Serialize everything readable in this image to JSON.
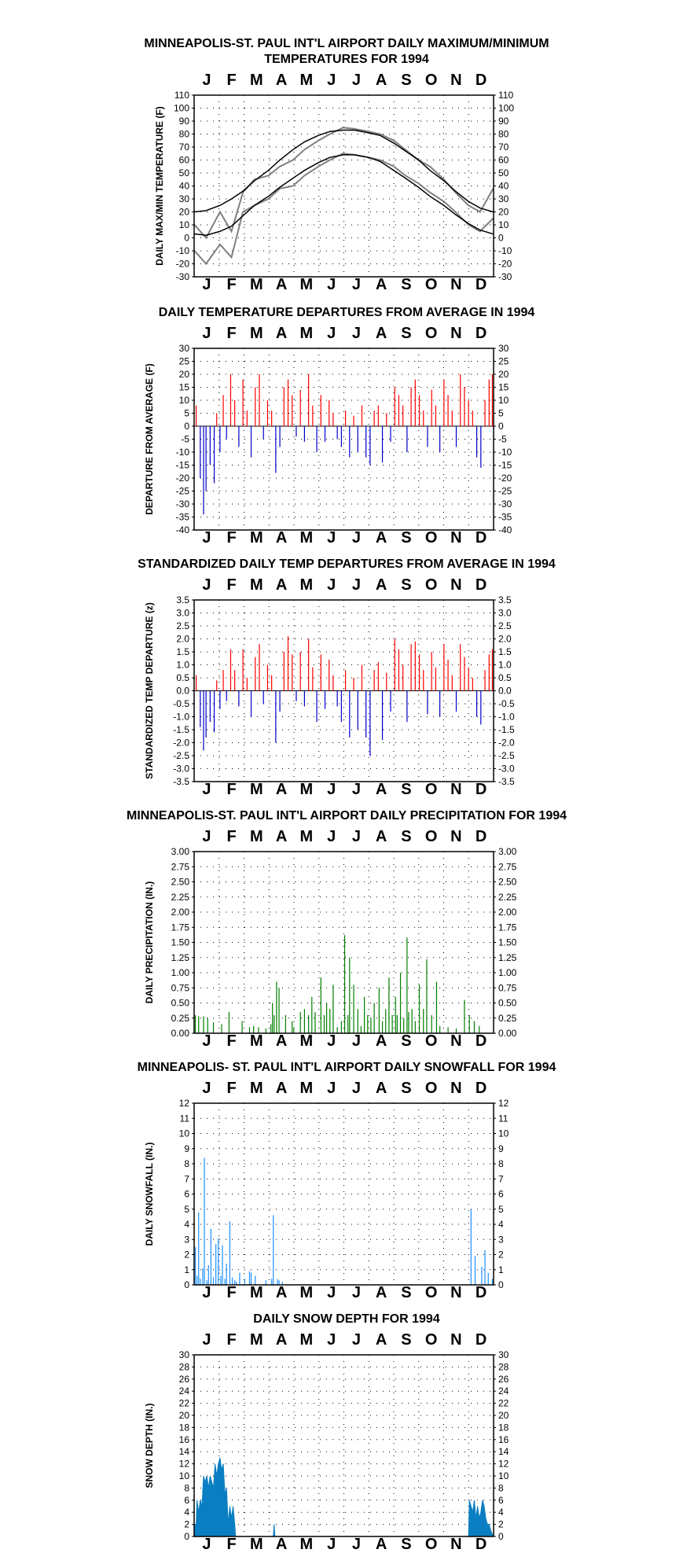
{
  "year": 1994,
  "months": [
    "J",
    "F",
    "M",
    "A",
    "M",
    "J",
    "J",
    "A",
    "S",
    "O",
    "N",
    "D"
  ],
  "colors": {
    "max": "#808080",
    "min": "#808080",
    "normal": "#000000",
    "above": "#ff0000",
    "below": "#0000cc",
    "precip": "#008000",
    "snow": "#1e90ff",
    "depth": "#0a7ec2"
  },
  "chart_data": [
    {
      "id": "temperature",
      "type": "line",
      "title": [
        "MINNEAPOLIS-ST. PAUL INT'L AIRPORT DAILY MAXIMUM/MINIMUM",
        "TEMPERATURES FOR 1994"
      ],
      "ylabel": "DAILY MAX/MIN TEMPERATURE (F)",
      "ylim": [
        -30,
        110
      ],
      "yticks": [
        -30,
        -20,
        -10,
        0,
        10,
        20,
        30,
        40,
        50,
        60,
        70,
        80,
        90,
        100,
        110
      ],
      "grid": true,
      "description_series": [
        "daily max",
        "daily min",
        "normal max",
        "normal min"
      ],
      "x": [
        1,
        15,
        32,
        46,
        60,
        74,
        91,
        105,
        121,
        135,
        152,
        166,
        182,
        196,
        213,
        227,
        244,
        258,
        274,
        288,
        305,
        319,
        335,
        349,
        365
      ],
      "series": [
        {
          "key": "max",
          "values": [
            10,
            0,
            20,
            5,
            35,
            45,
            48,
            55,
            60,
            68,
            75,
            80,
            85,
            84,
            82,
            80,
            75,
            68,
            60,
            55,
            45,
            35,
            25,
            20,
            38
          ]
        },
        {
          "key": "min",
          "values": [
            -10,
            -20,
            -5,
            -15,
            20,
            25,
            30,
            38,
            40,
            48,
            55,
            60,
            65,
            64,
            62,
            60,
            55,
            48,
            42,
            35,
            28,
            20,
            10,
            5,
            15
          ]
        },
        {
          "key": "normal_max",
          "values": [
            20,
            21,
            25,
            30,
            36,
            44,
            52,
            60,
            68,
            74,
            79,
            82,
            83,
            83,
            81,
            79,
            73,
            67,
            60,
            52,
            44,
            36,
            28,
            23,
            20
          ]
        },
        {
          "key": "normal_min",
          "values": [
            3,
            2,
            5,
            9,
            17,
            25,
            32,
            39,
            46,
            52,
            58,
            62,
            64,
            64,
            62,
            59,
            52,
            46,
            39,
            32,
            25,
            18,
            11,
            6,
            3
          ]
        }
      ]
    },
    {
      "id": "departure",
      "type": "bar",
      "title": [
        "DAILY TEMPERATURE DEPARTURES FROM AVERAGE IN 1994"
      ],
      "ylabel": "DEPARTURE FROM AVERAGE (F)",
      "ylim": [
        -40,
        30
      ],
      "yticks": [
        -40,
        -35,
        -30,
        -25,
        -20,
        -15,
        -10,
        -5,
        0,
        5,
        10,
        15,
        20,
        25,
        30
      ],
      "grid": true,
      "x": [
        3,
        8,
        12,
        15,
        20,
        25,
        28,
        32,
        36,
        40,
        45,
        50,
        55,
        60,
        65,
        70,
        75,
        80,
        85,
        90,
        95,
        100,
        105,
        110,
        115,
        120,
        125,
        130,
        135,
        140,
        145,
        150,
        155,
        160,
        165,
        170,
        175,
        180,
        185,
        190,
        195,
        200,
        205,
        210,
        215,
        220,
        225,
        230,
        235,
        240,
        245,
        250,
        255,
        260,
        265,
        270,
        275,
        280,
        285,
        290,
        295,
        300,
        305,
        310,
        315,
        320,
        325,
        330,
        335,
        340,
        345,
        350,
        355,
        360,
        364
      ],
      "values": [
        8,
        -20,
        -34,
        -25,
        -15,
        -22,
        5,
        -10,
        12,
        -5,
        20,
        10,
        -8,
        18,
        6,
        -12,
        15,
        20,
        -5,
        10,
        6,
        -18,
        -8,
        15,
        18,
        12,
        -4,
        14,
        -6,
        20,
        8,
        -10,
        12,
        -6,
        10,
        5,
        -5,
        -8,
        6,
        -12,
        4,
        -10,
        8,
        -12,
        -15,
        6,
        8,
        -14,
        5,
        -6,
        15,
        12,
        8,
        -10,
        15,
        18,
        12,
        6,
        -8,
        14,
        8,
        -10,
        18,
        12,
        6,
        -8,
        20,
        15,
        10,
        6,
        -12,
        -16,
        10,
        18,
        20
      ]
    },
    {
      "id": "standardized",
      "type": "bar",
      "title": [
        "STANDARDIZED DAILY TEMP DEPARTURES FROM AVERAGE IN 1994"
      ],
      "ylabel": "STANDARDIZED TEMP DEPARTURE (z)",
      "ylim": [
        -3.5,
        3.5
      ],
      "yticks": [
        -3.5,
        -3.0,
        -2.5,
        -2.0,
        -1.5,
        -1.0,
        -0.5,
        0.0,
        0.5,
        1.0,
        1.5,
        2.0,
        2.5,
        3.0,
        3.5
      ],
      "grid": true,
      "x": [
        3,
        8,
        12,
        15,
        20,
        25,
        28,
        32,
        36,
        40,
        45,
        50,
        55,
        60,
        65,
        70,
        75,
        80,
        85,
        90,
        95,
        100,
        105,
        110,
        115,
        120,
        125,
        130,
        135,
        140,
        145,
        150,
        155,
        160,
        165,
        170,
        175,
        180,
        185,
        190,
        195,
        200,
        205,
        210,
        215,
        220,
        225,
        230,
        235,
        240,
        245,
        250,
        255,
        260,
        265,
        270,
        275,
        280,
        285,
        290,
        295,
        300,
        305,
        310,
        315,
        320,
        325,
        330,
        335,
        340,
        345,
        350,
        355,
        360,
        364
      ],
      "values": [
        0.6,
        -1.4,
        -2.3,
        -1.8,
        -1.2,
        -1.6,
        0.4,
        -0.7,
        0.8,
        -0.4,
        1.6,
        0.8,
        -0.6,
        1.6,
        0.5,
        -1.0,
        1.3,
        1.8,
        -0.5,
        1.0,
        0.6,
        -2.0,
        -0.8,
        1.5,
        2.1,
        1.4,
        -0.4,
        1.5,
        -0.6,
        2.0,
        0.9,
        -1.2,
        1.4,
        -0.7,
        1.2,
        0.6,
        -0.6,
        -1.2,
        0.8,
        -1.8,
        0.5,
        -1.5,
        1.0,
        -1.8,
        -2.5,
        0.8,
        1.1,
        -1.9,
        0.7,
        -0.8,
        2.0,
        1.6,
        1.0,
        -1.2,
        1.8,
        1.9,
        1.4,
        0.8,
        -0.9,
        1.5,
        0.9,
        -1.0,
        1.8,
        1.2,
        0.6,
        -0.8,
        1.8,
        1.3,
        0.9,
        0.5,
        -1.0,
        -1.3,
        0.8,
        1.4,
        1.6
      ]
    },
    {
      "id": "precipitation",
      "type": "bar",
      "title": [
        "MINNEAPOLIS-ST. PAUL INT'L AIRPORT DAILY PRECIPITATION FOR 1994"
      ],
      "ylabel": "DAILY PRECIPITATION (IN.)",
      "ylim": [
        0,
        3.0
      ],
      "yticks": [
        0.0,
        0.25,
        0.5,
        0.75,
        1.0,
        1.25,
        1.5,
        1.75,
        2.0,
        2.25,
        2.5,
        2.75,
        3.0
      ],
      "grid": true,
      "x": [
        2,
        6,
        12,
        17,
        24,
        34,
        43,
        59,
        68,
        73,
        79,
        88,
        94,
        96,
        98,
        101,
        104,
        112,
        120,
        122,
        130,
        135,
        140,
        144,
        148,
        155,
        159,
        162,
        166,
        170,
        175,
        180,
        184,
        188,
        190,
        195,
        200,
        204,
        208,
        212,
        216,
        220,
        226,
        230,
        234,
        238,
        242,
        246,
        248,
        252,
        256,
        260,
        262,
        266,
        270,
        275,
        280,
        284,
        290,
        296,
        300,
        310,
        320,
        330,
        336,
        342,
        348
      ],
      "values": [
        0.3,
        0.28,
        0.28,
        0.25,
        0.18,
        0.15,
        0.35,
        0.2,
        0.1,
        0.12,
        0.1,
        0.08,
        0.15,
        0.5,
        0.3,
        0.85,
        0.75,
        0.3,
        0.2,
        0.1,
        0.35,
        0.4,
        0.3,
        0.6,
        0.35,
        0.92,
        0.3,
        0.5,
        0.4,
        0.8,
        0.1,
        0.2,
        1.62,
        0.3,
        1.25,
        0.8,
        0.4,
        0.12,
        0.6,
        0.3,
        0.25,
        0.5,
        0.75,
        0.2,
        0.4,
        0.92,
        0.3,
        0.6,
        0.3,
        1.0,
        0.25,
        1.58,
        0.35,
        0.4,
        0.2,
        0.8,
        0.4,
        1.22,
        0.3,
        0.85,
        0.12,
        0.1,
        0.08,
        0.55,
        0.3,
        0.2,
        0.12
      ]
    },
    {
      "id": "snowfall",
      "type": "bar",
      "title": [
        "MINNEAPOLIS- ST. PAUL INT'L AIRPORT DAILY SNOWFALL FOR 1994"
      ],
      "ylabel": "DAILY SNOWFALL (IN.)",
      "ylim": [
        0,
        12
      ],
      "yticks": [
        0,
        1,
        2,
        3,
        4,
        5,
        6,
        7,
        8,
        9,
        10,
        11,
        12
      ],
      "grid": true,
      "x": [
        2,
        4,
        6,
        8,
        11,
        13,
        16,
        18,
        21,
        24,
        27,
        30,
        33,
        35,
        38,
        40,
        44,
        47,
        50,
        52,
        56,
        62,
        68,
        70,
        75,
        88,
        95,
        97,
        102,
        104,
        108,
        338,
        343,
        351,
        355,
        359,
        364
      ],
      "values": [
        2.5,
        0.6,
        4.8,
        0.4,
        1.1,
        8.4,
        0.3,
        1.3,
        3.7,
        0.5,
        2.7,
        3.1,
        0.6,
        2.6,
        0.4,
        1.4,
        4.2,
        0.5,
        0.3,
        0.2,
        0.8,
        0.4,
        0.9,
        0.8,
        0.6,
        0.3,
        0.4,
        4.6,
        0.4,
        0.3,
        0.2,
        5.0,
        1.9,
        1.2,
        2.3,
        0.8,
        0.4
      ]
    },
    {
      "id": "snowdepth",
      "type": "area",
      "title": [
        "DAILY SNOW DEPTH FOR 1994"
      ],
      "ylabel": "SNOW DEPTH (IN.)",
      "ylim": [
        0,
        30
      ],
      "yticks": [
        0,
        2,
        4,
        6,
        8,
        10,
        12,
        14,
        16,
        18,
        20,
        22,
        24,
        26,
        28,
        30
      ],
      "grid": true,
      "x": [
        1,
        3,
        4,
        6,
        8,
        10,
        12,
        14,
        16,
        18,
        20,
        22,
        24,
        26,
        28,
        30,
        32,
        34,
        36,
        38,
        40,
        42,
        44,
        46,
        48,
        50,
        51,
        97,
        98,
        99,
        335,
        336,
        338,
        340,
        342,
        344,
        346,
        348,
        350,
        352,
        354,
        356,
        358,
        360,
        362,
        365
      ],
      "values": [
        2,
        2,
        6,
        4,
        6,
        5,
        10,
        9,
        10,
        8,
        10,
        9,
        8,
        12,
        10,
        12,
        13,
        11,
        12,
        7,
        8,
        2,
        5,
        3,
        5,
        2,
        0,
        0,
        2,
        0,
        0,
        6,
        5,
        4,
        6,
        3,
        5,
        3,
        4,
        6,
        5,
        3,
        2,
        2,
        1,
        0
      ]
    }
  ]
}
